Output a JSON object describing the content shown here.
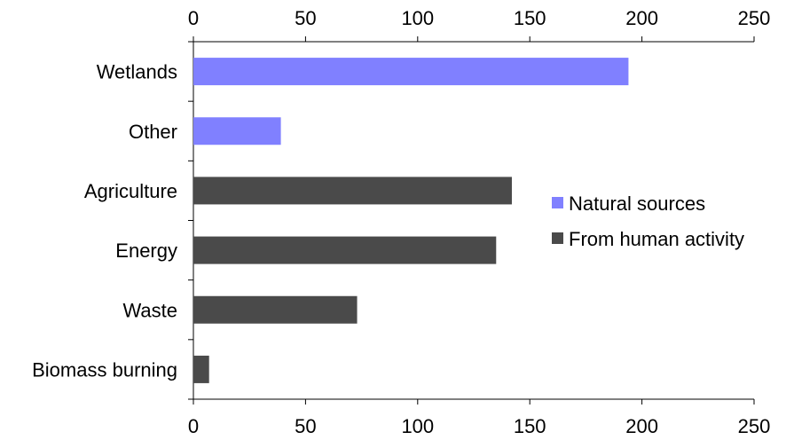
{
  "chart_data": {
    "type": "bar",
    "orientation": "horizontal",
    "categories": [
      "Wetlands",
      "Other",
      "Agriculture",
      "Energy",
      "Waste",
      "Biomass burning"
    ],
    "values": [
      194,
      39,
      142,
      135,
      73,
      7
    ],
    "category_series": [
      "Natural sources",
      "Natural sources",
      "From human activity",
      "From human activity",
      "From human activity",
      "From human activity"
    ],
    "series": [
      {
        "name": "Natural sources",
        "color": "#8080ff"
      },
      {
        "name": "From human activity",
        "color": "#4a4a4a"
      }
    ],
    "xlim": [
      0,
      250
    ],
    "xticks": [
      "0",
      "50",
      "100",
      "150",
      "200",
      "250"
    ],
    "x_axis_position": "top and bottom",
    "grid": false,
    "legend_position": "right-middle"
  }
}
